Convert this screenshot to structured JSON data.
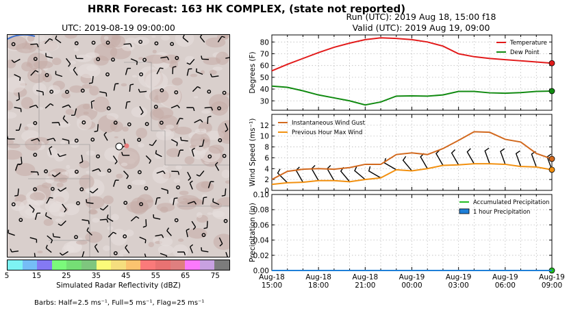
{
  "header": {
    "title": "HRRR Forecast: 163 HK COMPLEX, (state not reported)",
    "run": "Run (UTC): 2019 Aug 18, 15:00 f18",
    "valid": "Valid (UTC): 2019 Aug 19, 09:00"
  },
  "map": {
    "utc_label": "UTC: 2019-08-19 09:00:00",
    "colorbar_label": "Simulated Radar Reflectivity (dBZ)",
    "colorbar_ticks": [
      "5",
      "15",
      "25",
      "35",
      "45",
      "55",
      "65",
      "75"
    ],
    "colorbar_colors": [
      "#7df3f3",
      "#75bdf6",
      "#8479f3",
      "#7bfa7b",
      "#75de75",
      "#7ec67e",
      "#fbfb79",
      "#f5de7e",
      "#fbc36f",
      "#fa7a7a",
      "#e97272",
      "#df7f7f",
      "#fc79fc",
      "#c8a1e1",
      "#7c7c7c"
    ],
    "barbs_note": "Barbs: Half=2.5 ms⁻¹, Full=5 ms⁻¹, Flag=25 ms⁻¹"
  },
  "chart_data": [
    {
      "type": "line",
      "ylabel": "Degrees (F)",
      "ylim": [
        22,
        86
      ],
      "yticks": [
        30,
        40,
        50,
        60,
        70,
        80
      ],
      "grid": true,
      "legend_position": "top-right",
      "x": [
        "Aug-18 15:00",
        "Aug-18 16:00",
        "Aug-18 17:00",
        "Aug-18 18:00",
        "Aug-18 19:00",
        "Aug-18 20:00",
        "Aug-18 21:00",
        "Aug-18 22:00",
        "Aug-18 23:00",
        "Aug-19 00:00",
        "Aug-19 01:00",
        "Aug-19 02:00",
        "Aug-19 03:00",
        "Aug-19 04:00",
        "Aug-19 05:00",
        "Aug-19 06:00",
        "Aug-19 07:00",
        "Aug-19 08:00",
        "Aug-19 09:00"
      ],
      "series": [
        {
          "name": "Temperature",
          "color": "#e21a1a",
          "values": [
            55.5,
            61,
            66,
            71,
            75.5,
            79,
            82,
            83.5,
            83,
            82,
            80,
            76.5,
            70,
            67.5,
            66,
            65,
            64,
            63,
            62
          ]
        },
        {
          "name": "Dew Point",
          "color": "#108a10",
          "values": [
            42.5,
            41.5,
            38.5,
            35,
            32.5,
            30,
            26.5,
            29,
            34,
            34.2,
            34,
            35,
            38,
            38,
            36.8,
            36.5,
            37,
            38,
            38.3
          ]
        }
      ]
    },
    {
      "type": "line",
      "ylabel": "Wind Speed (ms⁻¹)",
      "ylim": [
        0,
        14
      ],
      "yticks": [
        0,
        2,
        4,
        6,
        8,
        10,
        12
      ],
      "grid": true,
      "legend_position": "top-left",
      "x": [
        "Aug-18 15:00",
        "Aug-18 16:00",
        "Aug-18 17:00",
        "Aug-18 18:00",
        "Aug-18 19:00",
        "Aug-18 20:00",
        "Aug-18 21:00",
        "Aug-18 22:00",
        "Aug-18 23:00",
        "Aug-19 00:00",
        "Aug-19 01:00",
        "Aug-19 02:00",
        "Aug-19 03:00",
        "Aug-19 04:00",
        "Aug-19 05:00",
        "Aug-19 06:00",
        "Aug-19 07:00",
        "Aug-19 08:00",
        "Aug-19 09:00"
      ],
      "series": [
        {
          "name": "Instantaneous Wind Gust",
          "color": "#d2691e",
          "values": [
            2.0,
            3.5,
            3.9,
            4.0,
            3.9,
            4.2,
            4.8,
            4.8,
            6.6,
            6.9,
            6.6,
            7.7,
            9.2,
            10.8,
            10.7,
            9.4,
            8.9,
            6.8,
            5.8
          ]
        },
        {
          "name": "Previous Hour Max Wind",
          "color": "#f2900f",
          "values": [
            1.1,
            1.4,
            1.5,
            1.8,
            1.8,
            1.6,
            2.0,
            2.3,
            3.8,
            3.6,
            4.0,
            4.6,
            4.7,
            4.9,
            4.9,
            4.8,
            4.4,
            4.3,
            3.8
          ]
        }
      ],
      "wind_barb_directions_deg": [
        315,
        315,
        330,
        330,
        330,
        320,
        310,
        300,
        300,
        320,
        330,
        330,
        330,
        330,
        340,
        340,
        340,
        340,
        340
      ]
    },
    {
      "type": "line",
      "ylabel": "Precipitation (in)",
      "ylim": [
        0,
        0.1
      ],
      "yticks": [
        "0.00",
        "0.02",
        "0.04",
        "0.06",
        "0.08",
        "0.10"
      ],
      "grid": true,
      "legend_position": "top-right",
      "x": [
        "Aug-18 15:00",
        "Aug-18 16:00",
        "Aug-18 17:00",
        "Aug-18 18:00",
        "Aug-18 19:00",
        "Aug-18 20:00",
        "Aug-18 21:00",
        "Aug-18 22:00",
        "Aug-18 23:00",
        "Aug-19 00:00",
        "Aug-19 01:00",
        "Aug-19 02:00",
        "Aug-19 03:00",
        "Aug-19 04:00",
        "Aug-19 05:00",
        "Aug-19 06:00",
        "Aug-19 07:00",
        "Aug-19 08:00",
        "Aug-19 09:00"
      ],
      "xticklabels": [
        [
          "Aug-18",
          "15:00"
        ],
        [
          "Aug-18",
          "18:00"
        ],
        [
          "Aug-18",
          "21:00"
        ],
        [
          "Aug-19",
          "00:00"
        ],
        [
          "Aug-19",
          "03:00"
        ],
        [
          "Aug-19",
          "06:00"
        ],
        [
          "Aug-19",
          "09:00"
        ]
      ],
      "series": [
        {
          "name": "Accumulated Precipitation",
          "color": "#22bb22",
          "values": [
            0,
            0,
            0,
            0,
            0,
            0,
            0,
            0,
            0,
            0,
            0,
            0,
            0,
            0,
            0,
            0,
            0,
            0,
            0
          ]
        },
        {
          "name": "1 hour Precipitation",
          "color": "#1e7fd8",
          "values": [
            0,
            0,
            0,
            0,
            0,
            0,
            0,
            0,
            0,
            0,
            0,
            0,
            0,
            0,
            0,
            0,
            0,
            0,
            0
          ]
        }
      ]
    }
  ]
}
